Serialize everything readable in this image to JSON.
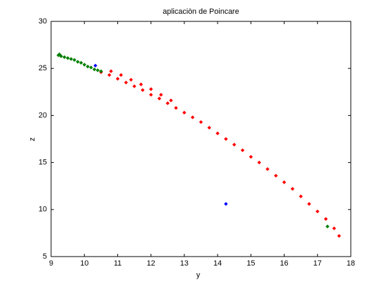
{
  "chart_data": {
    "type": "scatter",
    "title": "aplicaciòn de Poincare",
    "x_label": "y",
    "y_label": "z",
    "xlim": [
      9,
      18
    ],
    "ylim": [
      5,
      30
    ],
    "xticks": [
      9,
      10,
      11,
      12,
      13,
      14,
      15,
      16,
      17,
      18
    ],
    "yticks": [
      5,
      10,
      15,
      20,
      25,
      30
    ],
    "grid": false,
    "series": [
      {
        "color": "#ff0000",
        "x": [
          10.5,
          10.75,
          11,
          11.25,
          11.5,
          11.75,
          12,
          12.25,
          12.5,
          12.75,
          13,
          13.25,
          13.5,
          13.75,
          14,
          14.25,
          14.5,
          14.75,
          15,
          15.25,
          15.5,
          15.75,
          16,
          16.25,
          16.5,
          16.75,
          17,
          17.25,
          17.5,
          17.65,
          10.8,
          11.1,
          11.4,
          11.7,
          12,
          12.3,
          12.6
        ],
        "values": [
          24.6,
          24.3,
          23.9,
          23.5,
          23.1,
          22.7,
          22.2,
          21.8,
          21.3,
          20.8,
          20.3,
          19.8,
          19.3,
          18.7,
          18.1,
          17.5,
          16.9,
          16.3,
          15.6,
          15.0,
          14.3,
          13.6,
          12.9,
          12.2,
          11.4,
          10.6,
          9.8,
          9.0,
          8.0,
          7.2,
          24.7,
          24.3,
          23.8,
          23.3,
          22.8,
          22.2,
          21.6
        ]
      },
      {
        "color": "#008000",
        "x": [
          9.22,
          9.25,
          9.3,
          9.4,
          9.5,
          9.6,
          9.7,
          9.8,
          9.9,
          10.0,
          10.1,
          10.2,
          10.3,
          10.4,
          10.5,
          17.3
        ],
        "values": [
          26.4,
          26.5,
          26.3,
          26.2,
          26.1,
          26.0,
          25.9,
          25.7,
          25.6,
          25.4,
          25.2,
          25.1,
          24.9,
          24.8,
          24.7,
          8.2
        ]
      },
      {
        "color": "#0000ff",
        "x": [
          14.25,
          10.33
        ],
        "values": [
          10.6,
          25.3
        ]
      }
    ]
  }
}
